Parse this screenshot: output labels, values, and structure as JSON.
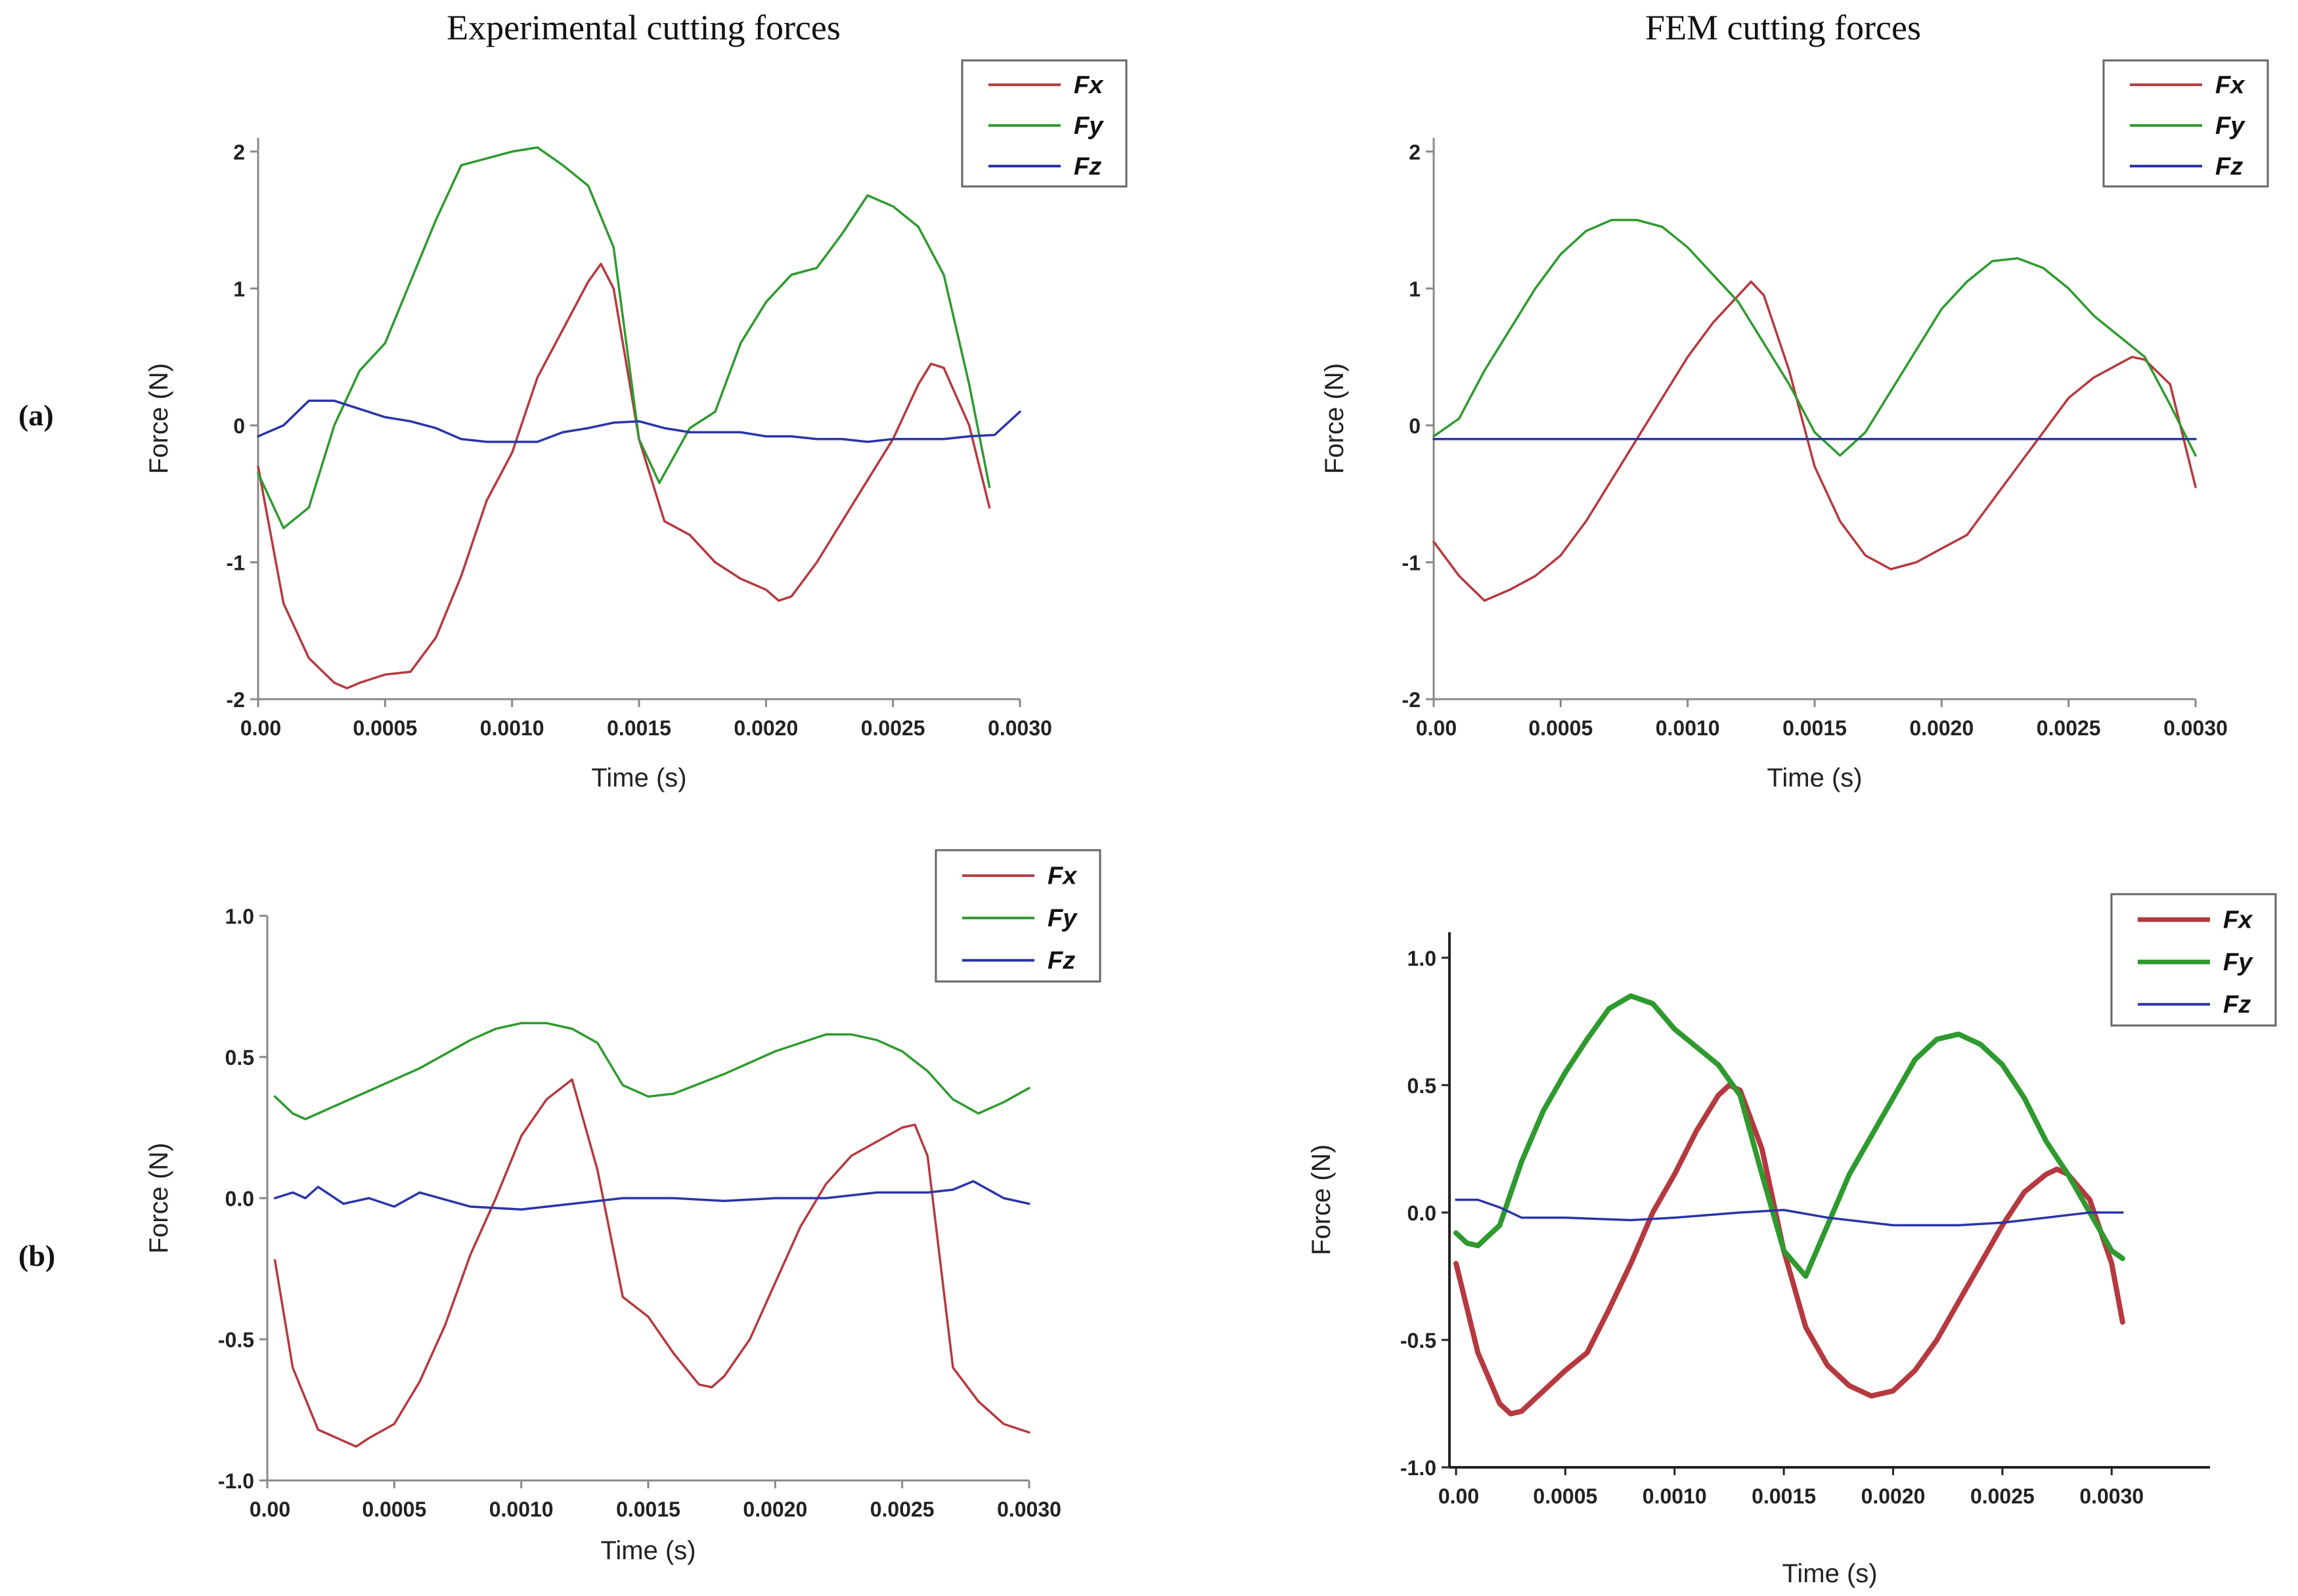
{
  "column_titles": [
    "Experimental cutting forces",
    "FEM cutting forces"
  ],
  "row_labels": [
    "(a)",
    "(b)"
  ],
  "series_colors": {
    "Fx": "#b5393f",
    "Fy": "#2e9a2e",
    "Fz": "#2b34a8"
  },
  "chart_data": [
    {
      "id": "a-exp",
      "type": "line",
      "title": "",
      "xlabel": "Time (s)",
      "ylabel": "Force (N)",
      "xlim": [
        0,
        0.003
      ],
      "ylim": [
        -2,
        2.1
      ],
      "xticks": [
        0,
        0.0005,
        0.001,
        0.0015,
        0.002,
        0.0025,
        0.003
      ],
      "xtick_labels": [
        "0.00",
        "0.0005",
        "0.0010",
        "0.0015",
        "0.0020",
        "0.0025",
        "0.0030"
      ],
      "yticks": [
        -2,
        -1,
        0,
        1,
        2
      ],
      "ytick_labels": [
        "-2",
        "-1",
        "0",
        "1",
        "2"
      ],
      "legend": [
        "Fx",
        "Fy",
        "Fz"
      ],
      "legend_position": "top-right",
      "series": [
        {
          "name": "Fx",
          "x": [
            0,
            0.0001,
            0.0002,
            0.0003,
            0.00035,
            0.0004,
            0.0005,
            0.0006,
            0.0007,
            0.0008,
            0.0009,
            0.001,
            0.0011,
            0.0012,
            0.0013,
            0.00135,
            0.0014,
            0.0015,
            0.0016,
            0.0017,
            0.0018,
            0.0019,
            0.002,
            0.00205,
            0.0021,
            0.0022,
            0.0023,
            0.0024,
            0.0025,
            0.0026,
            0.00265,
            0.0027,
            0.0028,
            0.00288
          ],
          "values": [
            -0.3,
            -1.3,
            -1.7,
            -1.88,
            -1.92,
            -1.88,
            -1.82,
            -1.8,
            -1.55,
            -1.1,
            -0.55,
            -0.2,
            0.35,
            0.7,
            1.05,
            1.18,
            1.0,
            -0.1,
            -0.7,
            -0.8,
            -1.0,
            -1.12,
            -1.2,
            -1.28,
            -1.25,
            -1.0,
            -0.7,
            -0.4,
            -0.1,
            0.3,
            0.45,
            0.42,
            0.0,
            -0.6
          ]
        },
        {
          "name": "Fy",
          "x": [
            0,
            0.0001,
            0.0002,
            0.0003,
            0.0004,
            0.0005,
            0.0006,
            0.0007,
            0.0008,
            0.0009,
            0.001,
            0.0011,
            0.0012,
            0.0013,
            0.0014,
            0.0015,
            0.00158,
            0.0017,
            0.0018,
            0.0019,
            0.002,
            0.0021,
            0.0022,
            0.0023,
            0.0024,
            0.0025,
            0.0026,
            0.0027,
            0.0028,
            0.00288
          ],
          "values": [
            -0.35,
            -0.75,
            -0.6,
            0.0,
            0.4,
            0.6,
            1.05,
            1.5,
            1.9,
            1.95,
            2.0,
            2.03,
            1.9,
            1.75,
            1.3,
            -0.1,
            -0.42,
            -0.02,
            0.1,
            0.6,
            0.9,
            1.1,
            1.15,
            1.4,
            1.68,
            1.6,
            1.45,
            1.1,
            0.3,
            -0.45
          ]
        },
        {
          "name": "Fz",
          "x": [
            0,
            0.0001,
            0.0002,
            0.0003,
            0.0004,
            0.0005,
            0.0006,
            0.0007,
            0.0008,
            0.0009,
            0.001,
            0.0011,
            0.0012,
            0.0013,
            0.0014,
            0.0015,
            0.0016,
            0.0017,
            0.0018,
            0.0019,
            0.002,
            0.0021,
            0.0022,
            0.0023,
            0.0024,
            0.0025,
            0.0026,
            0.0027,
            0.0028,
            0.0029,
            0.003
          ],
          "values": [
            -0.08,
            0.0,
            0.18,
            0.18,
            0.12,
            0.06,
            0.03,
            -0.02,
            -0.1,
            -0.12,
            -0.12,
            -0.12,
            -0.05,
            -0.02,
            0.02,
            0.03,
            -0.02,
            -0.05,
            -0.05,
            -0.05,
            -0.08,
            -0.08,
            -0.1,
            -0.1,
            -0.12,
            -0.1,
            -0.1,
            -0.1,
            -0.08,
            -0.07,
            0.1
          ]
        }
      ]
    },
    {
      "id": "a-fem",
      "type": "line",
      "title": "",
      "xlabel": "Time (s)",
      "ylabel": "Force (N)",
      "xlim": [
        0,
        0.003
      ],
      "ylim": [
        -2,
        2.1
      ],
      "xticks": [
        0,
        0.0005,
        0.001,
        0.0015,
        0.002,
        0.0025,
        0.003
      ],
      "xtick_labels": [
        "0.00",
        "0.0005",
        "0.0010",
        "0.0015",
        "0.0020",
        "0.0025",
        "0.0030"
      ],
      "yticks": [
        -2,
        -1,
        0,
        1,
        2
      ],
      "ytick_labels": [
        "-2",
        "-1",
        "0",
        "1",
        "2"
      ],
      "legend": [
        "Fx",
        "Fy",
        "Fz"
      ],
      "legend_position": "top-right",
      "series": [
        {
          "name": "Fx",
          "x": [
            0,
            0.0001,
            0.0002,
            0.0003,
            0.0004,
            0.0005,
            0.0006,
            0.0007,
            0.0008,
            0.0009,
            0.001,
            0.0011,
            0.0012,
            0.00125,
            0.0013,
            0.0014,
            0.0015,
            0.0016,
            0.0017,
            0.0018,
            0.0019,
            0.002,
            0.0021,
            0.0022,
            0.0023,
            0.0024,
            0.0025,
            0.0026,
            0.0027,
            0.00275,
            0.0028,
            0.0029,
            0.003
          ],
          "values": [
            -0.85,
            -1.1,
            -1.28,
            -1.2,
            -1.1,
            -0.95,
            -0.7,
            -0.4,
            -0.1,
            0.2,
            0.5,
            0.75,
            0.95,
            1.05,
            0.95,
            0.4,
            -0.3,
            -0.7,
            -0.95,
            -1.05,
            -1.0,
            -0.9,
            -0.8,
            -0.55,
            -0.3,
            -0.05,
            0.2,
            0.35,
            0.45,
            0.5,
            0.48,
            0.3,
            -0.45
          ]
        },
        {
          "name": "Fy",
          "x": [
            0,
            0.0001,
            0.0002,
            0.0003,
            0.0004,
            0.0005,
            0.0006,
            0.0007,
            0.0008,
            0.0009,
            0.001,
            0.0011,
            0.0012,
            0.0013,
            0.0014,
            0.0015,
            0.0016,
            0.0017,
            0.0018,
            0.0019,
            0.002,
            0.0021,
            0.0022,
            0.0023,
            0.0024,
            0.0025,
            0.0026,
            0.0027,
            0.0028,
            0.0029,
            0.003
          ],
          "values": [
            -0.08,
            0.05,
            0.4,
            0.7,
            1.0,
            1.25,
            1.42,
            1.5,
            1.5,
            1.45,
            1.3,
            1.1,
            0.9,
            0.6,
            0.3,
            -0.05,
            -0.22,
            -0.05,
            0.25,
            0.55,
            0.85,
            1.05,
            1.2,
            1.22,
            1.15,
            1.0,
            0.8,
            0.65,
            0.5,
            0.15,
            -0.22
          ]
        },
        {
          "name": "Fz",
          "x": [
            0,
            0.0005,
            0.001,
            0.0015,
            0.002,
            0.0025,
            0.003
          ],
          "values": [
            -0.1,
            -0.1,
            -0.1,
            -0.1,
            -0.1,
            -0.1,
            -0.1
          ]
        }
      ]
    },
    {
      "id": "b-exp",
      "type": "line",
      "title": "",
      "xlabel": "Time (s)",
      "ylabel": "Force (N)",
      "xlim": [
        0,
        0.003
      ],
      "ylim": [
        -1.0,
        1.0
      ],
      "xticks": [
        0,
        0.0005,
        0.001,
        0.0015,
        0.002,
        0.0025,
        0.003
      ],
      "xtick_labels": [
        "0.00",
        "0.0005",
        "0.0010",
        "0.0015",
        "0.0020",
        "0.0025",
        "0.0030"
      ],
      "yticks": [
        -1,
        -0.5,
        0,
        0.5,
        1
      ],
      "ytick_labels": [
        "-1.0",
        "-0.5",
        "0.0",
        "0.5",
        "1.0"
      ],
      "legend": [
        "Fx",
        "Fy",
        "Fz"
      ],
      "legend_position": "top-right",
      "series": [
        {
          "name": "Fx",
          "x": [
            3e-05,
            0.0001,
            0.0002,
            0.0003,
            0.00035,
            0.0004,
            0.0005,
            0.0006,
            0.0007,
            0.0008,
            0.0009,
            0.001,
            0.0011,
            0.0012,
            0.0013,
            0.0014,
            0.0015,
            0.0016,
            0.0017,
            0.00175,
            0.0018,
            0.0019,
            0.002,
            0.0021,
            0.0022,
            0.0023,
            0.0024,
            0.0025,
            0.00255,
            0.0026,
            0.0027,
            0.0028,
            0.0029,
            0.003
          ],
          "values": [
            -0.22,
            -0.6,
            -0.82,
            -0.86,
            -0.88,
            -0.85,
            -0.8,
            -0.65,
            -0.45,
            -0.2,
            0.0,
            0.22,
            0.35,
            0.42,
            0.1,
            -0.35,
            -0.42,
            -0.55,
            -0.66,
            -0.67,
            -0.63,
            -0.5,
            -0.3,
            -0.1,
            0.05,
            0.15,
            0.2,
            0.25,
            0.26,
            0.15,
            -0.6,
            -0.72,
            -0.8,
            -0.83
          ]
        },
        {
          "name": "Fy",
          "x": [
            3e-05,
            0.0001,
            0.00015,
            0.0002,
            0.0004,
            0.0006,
            0.0008,
            0.0009,
            0.001,
            0.0011,
            0.0012,
            0.0013,
            0.0014,
            0.0015,
            0.0016,
            0.0018,
            0.002,
            0.0022,
            0.0023,
            0.0024,
            0.0025,
            0.0026,
            0.0027,
            0.0028,
            0.0029,
            0.003
          ],
          "values": [
            0.36,
            0.3,
            0.28,
            0.3,
            0.38,
            0.46,
            0.56,
            0.6,
            0.62,
            0.62,
            0.6,
            0.55,
            0.4,
            0.36,
            0.37,
            0.44,
            0.52,
            0.58,
            0.58,
            0.56,
            0.52,
            0.45,
            0.35,
            0.3,
            0.34,
            0.39
          ]
        },
        {
          "name": "Fz",
          "x": [
            3e-05,
            0.0001,
            0.00015,
            0.0002,
            0.0003,
            0.0004,
            0.0005,
            0.0006,
            0.0008,
            0.001,
            0.0012,
            0.0014,
            0.0016,
            0.0018,
            0.002,
            0.0022,
            0.0024,
            0.0026,
            0.0027,
            0.00278,
            0.0029,
            0.003
          ],
          "values": [
            0.0,
            0.02,
            0.0,
            0.04,
            -0.02,
            0.0,
            -0.03,
            0.02,
            -0.03,
            -0.04,
            -0.02,
            0.0,
            0.0,
            -0.01,
            0.0,
            0.0,
            0.02,
            0.02,
            0.03,
            0.06,
            0.0,
            -0.02
          ]
        }
      ]
    },
    {
      "id": "b-fem",
      "type": "line",
      "title": "",
      "xlabel": "Time (s)",
      "ylabel": "Force (N)",
      "xlim": [
        -3e-05,
        0.00345
      ],
      "ylim": [
        -1.0,
        1.1
      ],
      "xticks": [
        0,
        0.0005,
        0.001,
        0.0015,
        0.002,
        0.0025,
        0.003
      ],
      "xtick_labels": [
        "0.00",
        "0.0005",
        "0.0010",
        "0.0015",
        "0.0020",
        "0.0025",
        "0.0030"
      ],
      "yticks": [
        -1,
        -0.5,
        0,
        0.5,
        1
      ],
      "ytick_labels": [
        "-1.0",
        "-0.5",
        "0.0",
        "0.5",
        "1.0"
      ],
      "legend": [
        "Fx",
        "Fy",
        "Fz"
      ],
      "legend_position": "top-right",
      "series": [
        {
          "name": "Fx",
          "x": [
            0,
            0.0001,
            0.0002,
            0.00025,
            0.0003,
            0.0004,
            0.0005,
            0.0006,
            0.0007,
            0.0008,
            0.0009,
            0.001,
            0.0011,
            0.0012,
            0.00125,
            0.0013,
            0.0014,
            0.0015,
            0.0016,
            0.0017,
            0.0018,
            0.0019,
            0.002,
            0.0021,
            0.0022,
            0.0023,
            0.0024,
            0.0025,
            0.0026,
            0.0027,
            0.00275,
            0.0028,
            0.0029,
            0.003,
            0.00305
          ],
          "values": [
            -0.2,
            -0.55,
            -0.75,
            -0.79,
            -0.78,
            -0.7,
            -0.62,
            -0.55,
            -0.38,
            -0.2,
            0.0,
            0.15,
            0.32,
            0.46,
            0.5,
            0.48,
            0.25,
            -0.15,
            -0.45,
            -0.6,
            -0.68,
            -0.72,
            -0.7,
            -0.62,
            -0.5,
            -0.35,
            -0.2,
            -0.05,
            0.08,
            0.15,
            0.17,
            0.15,
            0.05,
            -0.2,
            -0.43
          ]
        },
        {
          "name": "Fy",
          "x": [
            0,
            5e-05,
            0.0001,
            0.0002,
            0.0003,
            0.0004,
            0.0005,
            0.0006,
            0.0007,
            0.0008,
            0.0009,
            0.001,
            0.0011,
            0.0012,
            0.0013,
            0.0014,
            0.0015,
            0.0016,
            0.0017,
            0.0018,
            0.0019,
            0.002,
            0.0021,
            0.0022,
            0.0023,
            0.0024,
            0.0025,
            0.0026,
            0.0027,
            0.0028,
            0.0029,
            0.003,
            0.00305
          ],
          "values": [
            -0.08,
            -0.12,
            -0.13,
            -0.05,
            0.2,
            0.4,
            0.55,
            0.68,
            0.8,
            0.85,
            0.82,
            0.72,
            0.65,
            0.58,
            0.46,
            0.15,
            -0.15,
            -0.25,
            -0.05,
            0.15,
            0.3,
            0.45,
            0.6,
            0.68,
            0.7,
            0.66,
            0.58,
            0.45,
            0.28,
            0.15,
            0.0,
            -0.15,
            -0.18
          ]
        },
        {
          "name": "Fz",
          "x": [
            0,
            0.0001,
            0.0002,
            0.0003,
            0.0005,
            0.0008,
            0.001,
            0.0013,
            0.0015,
            0.0017,
            0.002,
            0.0023,
            0.0025,
            0.0027,
            0.0028,
            0.0029,
            0.003,
            0.00305
          ],
          "values": [
            0.05,
            0.05,
            0.02,
            -0.02,
            -0.02,
            -0.03,
            -0.02,
            0.0,
            0.01,
            -0.02,
            -0.05,
            -0.05,
            -0.04,
            -0.02,
            -0.01,
            0.0,
            0.0,
            0.0
          ]
        }
      ]
    }
  ]
}
